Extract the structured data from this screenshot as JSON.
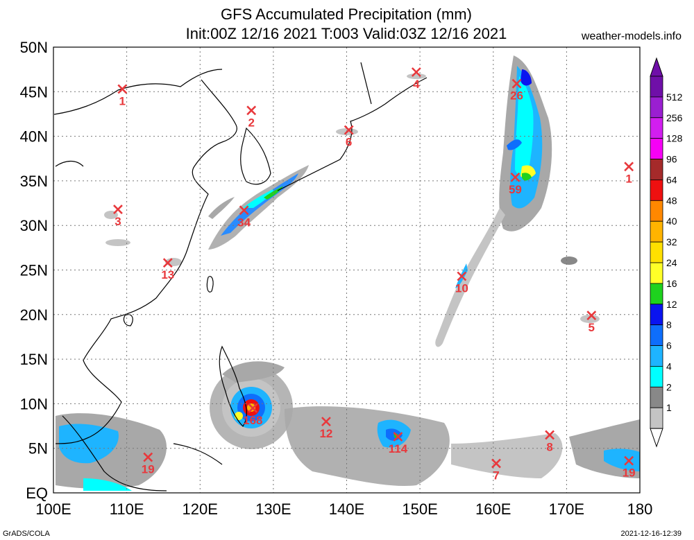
{
  "header": {
    "title_line1": "GFS Accumulated Precipitation (mm)",
    "title_line2": "Init:00Z 12/16 2021 T:003 Valid:03Z 12/16 2021",
    "site": "weather-models.info"
  },
  "footer": {
    "left": "GrADS/COLA",
    "right": "2021-12-16-12:39"
  },
  "map": {
    "lat_labels": [
      "50N",
      "45N",
      "40N",
      "35N",
      "30N",
      "25N",
      "20N",
      "15N",
      "10N",
      "5N",
      "EQ"
    ],
    "lon_labels": [
      "100E",
      "110E",
      "120E",
      "130E",
      "140E",
      "150E",
      "160E",
      "170E",
      "180"
    ],
    "marker_color": "#e8383c",
    "markers": [
      {
        "label": "1",
        "lon": 109.4,
        "lat": 45.3
      },
      {
        "label": "2",
        "lon": 127.0,
        "lat": 42.9
      },
      {
        "label": "4",
        "lon": 149.5,
        "lat": 47.2
      },
      {
        "label": "26",
        "lon": 163.2,
        "lat": 45.9
      },
      {
        "label": "6",
        "lon": 140.3,
        "lat": 40.7
      },
      {
        "label": "1",
        "lon": 178.5,
        "lat": 36.6
      },
      {
        "label": "59",
        "lon": 163.0,
        "lat": 35.4
      },
      {
        "label": "3",
        "lon": 108.8,
        "lat": 31.8
      },
      {
        "label": "34",
        "lon": 126.0,
        "lat": 31.7
      },
      {
        "label": "13",
        "lon": 115.6,
        "lat": 25.8
      },
      {
        "label": "10",
        "lon": 155.7,
        "lat": 24.3
      },
      {
        "label": "5",
        "lon": 173.4,
        "lat": 19.9
      },
      {
        "label": "168",
        "lon": 127.2,
        "lat": 9.5
      },
      {
        "label": "12",
        "lon": 137.2,
        "lat": 8.0
      },
      {
        "label": "114",
        "lon": 147.0,
        "lat": 6.3
      },
      {
        "label": "8",
        "lon": 167.7,
        "lat": 6.5
      },
      {
        "label": "19",
        "lon": 112.9,
        "lat": 4.0
      },
      {
        "label": "7",
        "lon": 160.4,
        "lat": 3.3
      },
      {
        "label": "19",
        "lon": 178.5,
        "lat": 3.6
      }
    ]
  },
  "colorbar": {
    "labels": [
      "512",
      "256",
      "128",
      "96",
      "64",
      "48",
      "40",
      "32",
      "24",
      "16",
      "12",
      "8",
      "6",
      "4",
      "2",
      "1"
    ],
    "colors": [
      "#6f0fa8",
      "#9a1fd1",
      "#d21ef0",
      "#f600f6",
      "#a52a2a",
      "#ee1010",
      "#ff8800",
      "#ffb400",
      "#ffe000",
      "#ffff28",
      "#1ed21e",
      "#0a14f0",
      "#0e6efc",
      "#1eb4ff",
      "#00ffff",
      "#888888",
      "#c4c4c4",
      "#ffffff"
    ]
  }
}
